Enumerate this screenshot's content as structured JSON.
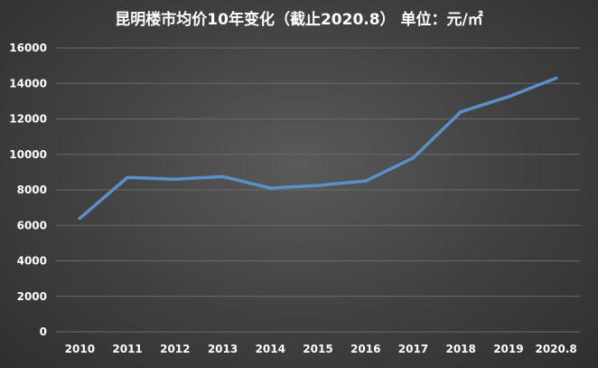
{
  "chart_data": {
    "type": "line",
    "title": "昆明楼市均价10年变化（截止2020.8） 单位：元/㎡",
    "xlabel": "",
    "ylabel": "",
    "categories": [
      "2010",
      "2011",
      "2012",
      "2013",
      "2014",
      "2015",
      "2016",
      "2017",
      "2018",
      "2019",
      "2020.8"
    ],
    "series": [
      {
        "values": [
          6400,
          8700,
          8600,
          8750,
          8100,
          8250,
          8500,
          9800,
          12400,
          13250,
          14300
        ]
      }
    ],
    "ylim": [
      0,
      16000
    ],
    "yticks": [
      0,
      2000,
      4000,
      6000,
      8000,
      10000,
      12000,
      14000,
      16000
    ],
    "grid": true,
    "legend": "none",
    "colors": {
      "series": "#5b8fc9",
      "grid": "#6a6a6a",
      "text": "#ffffff"
    }
  }
}
